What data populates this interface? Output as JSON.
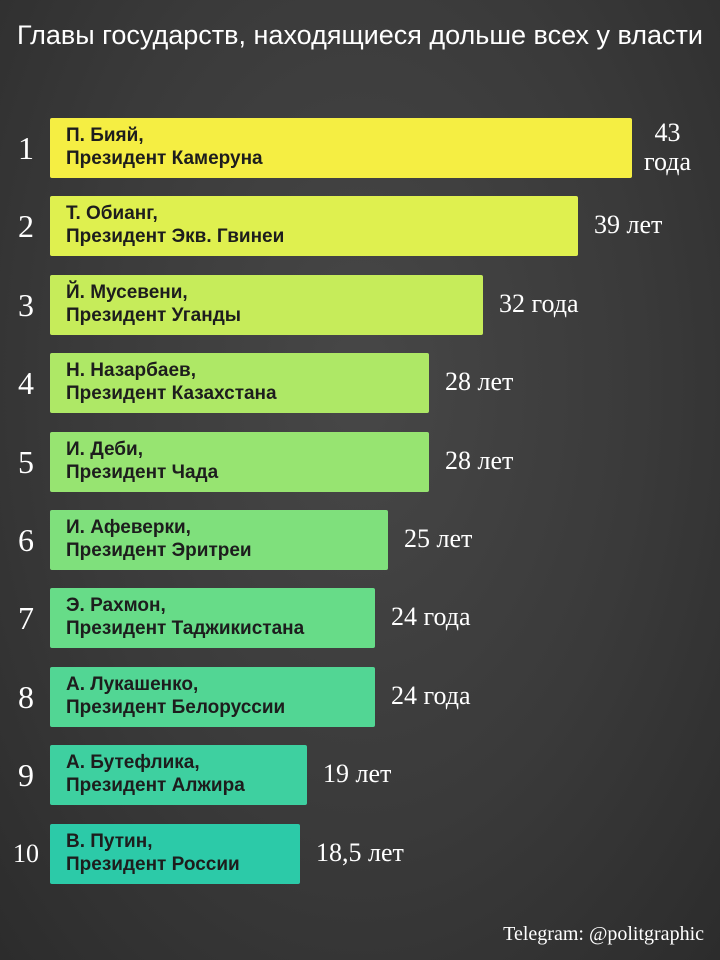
{
  "chart_data": {
    "type": "bar",
    "orientation": "horizontal",
    "title": "Главы государств, находящиеся дольше всех у власти",
    "xlabel": "",
    "ylabel": "",
    "grid": false,
    "unit": "years",
    "xlim": [
      0,
      43
    ],
    "items": [
      {
        "rank": "1",
        "name": "П. Бияй,",
        "position": "Президент Камеруна",
        "value": 43,
        "label": "43 года",
        "color": "#f5ee43"
      },
      {
        "rank": "2",
        "name": "Т. Обианг,",
        "position": "Президент Экв. Гвинеи",
        "value": 39,
        "label": "39 лет",
        "color": "#dff04f"
      },
      {
        "rank": "3",
        "name": "Й. Мусевени,",
        "position": "Президент Уганды",
        "value": 32,
        "label": "32 года",
        "color": "#c6ec5a"
      },
      {
        "rank": "4",
        "name": "Н. Назарбаев,",
        "position": "Президент Казахстана",
        "value": 28,
        "label": "28 лет",
        "color": "#aee866"
      },
      {
        "rank": "5",
        "name": "И. Деби,",
        "position": "Президент Чада",
        "value": 28,
        "label": "28 лет",
        "color": "#97e471"
      },
      {
        "rank": "6",
        "name": "И. Афеверки,",
        "position": "Президент Эритреи",
        "value": 25,
        "label": "25 лет",
        "color": "#7fe07c"
      },
      {
        "rank": "7",
        "name": "Э. Рахмон,",
        "position": "Президент Таджикистана",
        "value": 24,
        "label": "24 года",
        "color": "#67dc88"
      },
      {
        "rank": "8",
        "name": "А. Лукашенко,",
        "position": "Президент Белоруссии",
        "value": 24,
        "label": "24 года",
        "color": "#52d694"
      },
      {
        "rank": "9",
        "name": "А. Бутефлика,",
        "position": "Президент Алжира",
        "value": 19,
        "label": "19 лет",
        "color": "#3ed0a0"
      },
      {
        "rank": "10",
        "name": "В. Путин,",
        "position": "Президент России",
        "value": 18.5,
        "label": "18,5 лет",
        "color": "#2ccaa8"
      }
    ]
  },
  "footer": "Telegram: @politgraphic"
}
